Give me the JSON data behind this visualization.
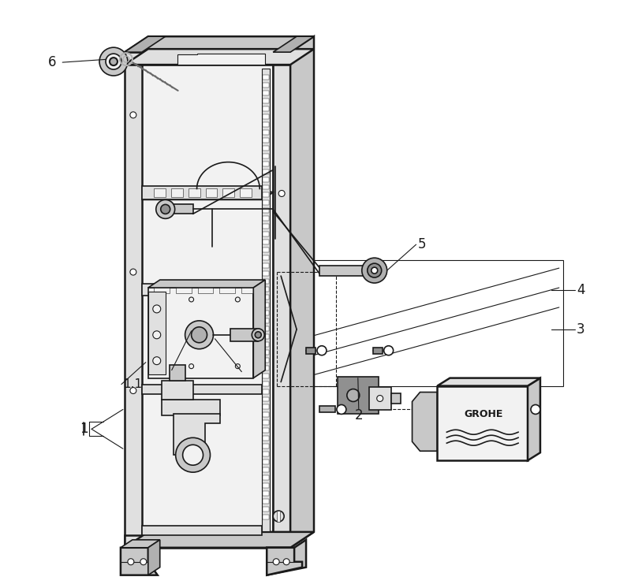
{
  "background_color": "#ffffff",
  "line_color": "#1a1a1a",
  "gray1": "#f2f2f2",
  "gray2": "#e0e0e0",
  "gray3": "#c8c8c8",
  "gray4": "#b0b0b0",
  "gray5": "#909090",
  "gray6": "#686868",
  "figure_width": 8.0,
  "figure_height": 7.46,
  "dpi": 100
}
